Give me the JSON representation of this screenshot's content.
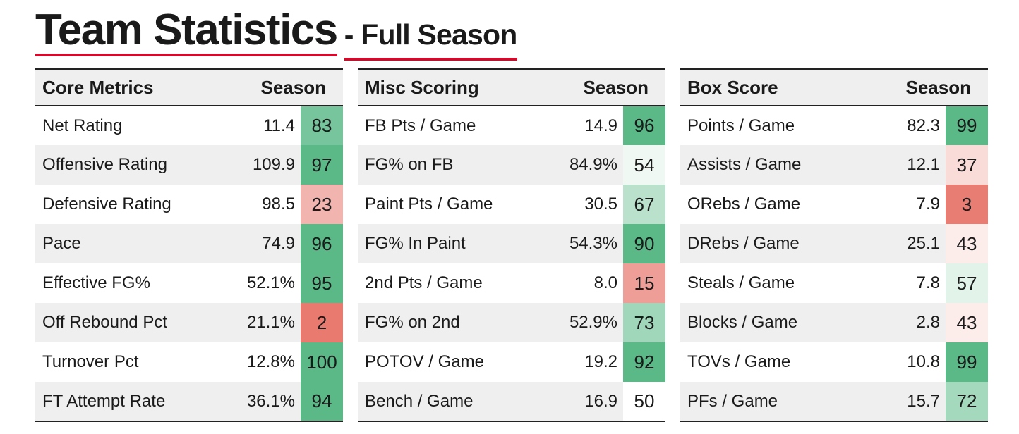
{
  "title": {
    "main": "Team Statistics",
    "sub": "- Full Season"
  },
  "panels": [
    {
      "header": "Core Metrics",
      "season_label": "Season",
      "rows": [
        {
          "label": "Net Rating",
          "value": "11.4",
          "pct": 83
        },
        {
          "label": "Offensive Rating",
          "value": "109.9",
          "pct": 97
        },
        {
          "label": "Defensive Rating",
          "value": "98.5",
          "pct": 23
        },
        {
          "label": "Pace",
          "value": "74.9",
          "pct": 96
        },
        {
          "label": "Effective FG%",
          "value": "52.1%",
          "pct": 95
        },
        {
          "label": "Off Rebound Pct",
          "value": "21.1%",
          "pct": 2
        },
        {
          "label": "Turnover Pct",
          "value": "12.8%",
          "pct": 100
        },
        {
          "label": "FT Attempt Rate",
          "value": "36.1%",
          "pct": 94
        }
      ]
    },
    {
      "header": "Misc Scoring",
      "season_label": "Season",
      "rows": [
        {
          "label": "FB Pts / Game",
          "value": "14.9",
          "pct": 96
        },
        {
          "label": "FG% on FB",
          "value": "84.9%",
          "pct": 54
        },
        {
          "label": "Paint Pts / Game",
          "value": "30.5",
          "pct": 67
        },
        {
          "label": "FG% In Paint",
          "value": "54.3%",
          "pct": 90
        },
        {
          "label": "2nd Pts / Game",
          "value": "8.0",
          "pct": 15
        },
        {
          "label": "FG% on 2nd",
          "value": "52.9%",
          "pct": 73
        },
        {
          "label": "POTOV / Game",
          "value": "19.2",
          "pct": 92
        },
        {
          "label": "Bench / Game",
          "value": "16.9",
          "pct": 50
        }
      ]
    },
    {
      "header": "Box Score",
      "season_label": "Season",
      "rows": [
        {
          "label": "Points / Game",
          "value": "82.3",
          "pct": 99
        },
        {
          "label": "Assists / Game",
          "value": "12.1",
          "pct": 37
        },
        {
          "label": "ORebs / Game",
          "value": "7.9",
          "pct": 3
        },
        {
          "label": "DRebs / Game",
          "value": "25.1",
          "pct": 43
        },
        {
          "label": "Steals / Game",
          "value": "7.8",
          "pct": 57
        },
        {
          "label": "Blocks / Game",
          "value": "2.8",
          "pct": 43
        },
        {
          "label": "TOVs / Game",
          "value": "10.8",
          "pct": 99
        },
        {
          "label": "PFs / Game",
          "value": "15.7",
          "pct": 72
        }
      ]
    }
  ],
  "colors": {
    "accent_underline": "#c8102e",
    "good": "#5ab987",
    "bad": "#e87a70",
    "neutral": "#ffffff"
  }
}
